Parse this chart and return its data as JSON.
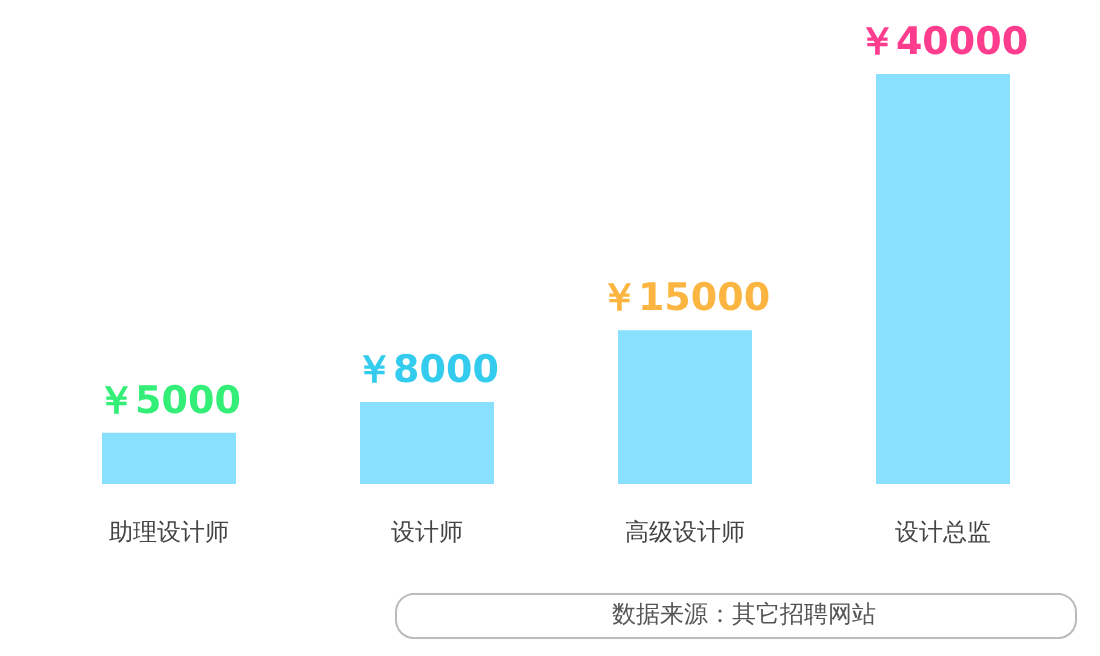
{
  "chart_data": {
    "type": "bar",
    "categories": [
      "助理设计师",
      "设计师",
      "高级设计师",
      "设计总监"
    ],
    "values": [
      5000,
      8000,
      15000,
      40000
    ],
    "value_labels": [
      "￥5000",
      "￥8000",
      "￥15000",
      "￥40000"
    ],
    "color": "#88e0fe",
    "annotations": [
      "数据来源：其它招聘网站"
    ]
  }
}
